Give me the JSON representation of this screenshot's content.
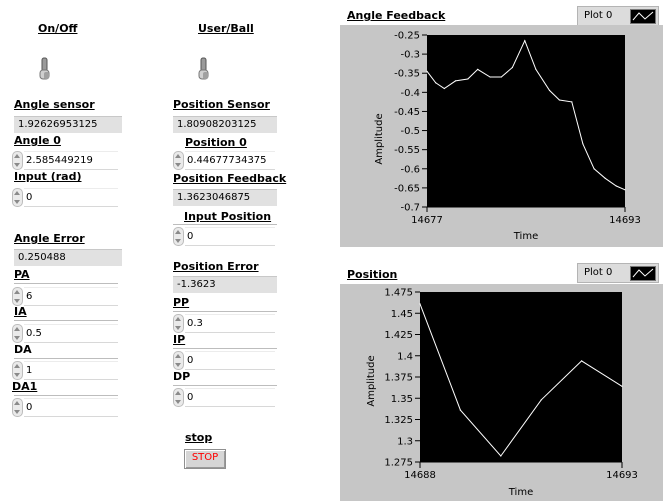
{
  "left_panel": {
    "on_off_label": "On/Off",
    "angle_sensor": {
      "label": "Angle sensor",
      "value": "1.92626953125"
    },
    "angle0": {
      "label": "Angle 0",
      "value": "2.585449219"
    },
    "input_rad": {
      "label": "Input (rad)",
      "value": "0"
    },
    "angle_error": {
      "label": "Angle Error",
      "value": "0.250488"
    },
    "pa": {
      "label": "PA",
      "value": "6"
    },
    "ia": {
      "label": "IA",
      "value": "0.5"
    },
    "da": {
      "label": "DA",
      "value": "1"
    },
    "da1": {
      "label": "DA1",
      "value": "0"
    }
  },
  "mid_panel": {
    "user_ball_label": "User/Ball",
    "position_sensor": {
      "label": "Position Sensor",
      "value": "1.80908203125"
    },
    "position0": {
      "label": "Position 0",
      "value": "0.44677734375"
    },
    "position_feedback": {
      "label": "Position Feedback",
      "value": "1.3623046875"
    },
    "input_position": {
      "label": "Input Position",
      "value": "0"
    },
    "position_error": {
      "label": "Position  Error",
      "value": "-1.3623"
    },
    "pp": {
      "label": "PP",
      "value": "0.3"
    },
    "ip": {
      "label": "IP",
      "value": "0"
    },
    "dp": {
      "label": "DP",
      "value": "0"
    },
    "stop": {
      "label": "stop",
      "button": "STOP"
    }
  },
  "graphs": {
    "angle": {
      "title": "Angle Feedback",
      "legend": "Plot 0",
      "ylabel": "Amplitude",
      "xlabel": "Time",
      "x_min_label": "14677",
      "x_max_label": "14693",
      "y_ticks": [
        "-0.25",
        "-0.3",
        "-0.35",
        "-0.4",
        "-0.45",
        "-0.5",
        "-0.55",
        "-0.6",
        "-0.65",
        "-0.7"
      ]
    },
    "position": {
      "title": "Position",
      "legend": "Plot 0",
      "ylabel": "Amplitude",
      "xlabel": "Time",
      "x_min_label": "14688",
      "x_max_label": "14693",
      "y_ticks": [
        "1.475",
        "1.45",
        "1.425",
        "1.4",
        "1.375",
        "1.35",
        "1.325",
        "1.3",
        "1.275"
      ]
    }
  },
  "chart_data": [
    {
      "type": "line",
      "title": "Angle Feedback",
      "xlabel": "Time",
      "ylabel": "Amplitude",
      "xlim": [
        14677,
        14693
      ],
      "ylim": [
        -0.7,
        -0.25
      ],
      "grid": false,
      "series": [
        {
          "name": "Plot 0",
          "x": [
            14677,
            14677.7,
            14678.4,
            14679.3,
            14680.3,
            14681.1,
            14682.1,
            14683.0,
            14683.9,
            14684.9,
            14685.8,
            14686.9,
            14687.7,
            14688.7,
            14689.6,
            14690.5,
            14691.4,
            14692.3,
            14693
          ],
          "y": [
            -0.345,
            -0.375,
            -0.39,
            -0.37,
            -0.365,
            -0.34,
            -0.36,
            -0.36,
            -0.335,
            -0.265,
            -0.34,
            -0.395,
            -0.42,
            -0.425,
            -0.535,
            -0.6,
            -0.625,
            -0.645,
            -0.655
          ]
        }
      ]
    },
    {
      "type": "line",
      "title": "Position",
      "xlabel": "Time",
      "ylabel": "Amplitude",
      "xlim": [
        14688,
        14693
      ],
      "ylim": [
        1.275,
        1.475
      ],
      "grid": false,
      "series": [
        {
          "name": "Plot 0",
          "x": [
            14688,
            14689,
            14690,
            14691,
            14692,
            14693
          ],
          "y": [
            1.461,
            1.336,
            1.282,
            1.348,
            1.394,
            1.364
          ]
        }
      ]
    }
  ]
}
